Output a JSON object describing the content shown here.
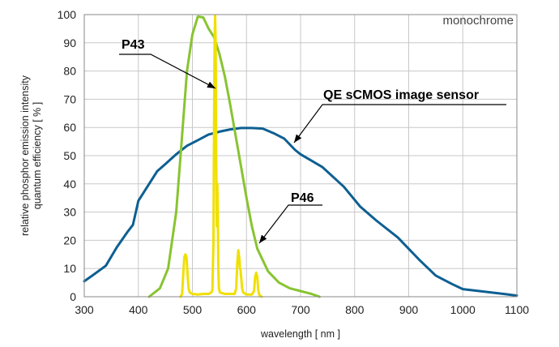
{
  "chart_data": {
    "type": "line",
    "annotations": {
      "corner": "monochrome",
      "qe": "QE sCMOS image sensor",
      "p43": "P43",
      "p46": "P46"
    },
    "xlabel": "wavelength [ nm ]",
    "ylabel_line1": "relative phosphor emission intensity",
    "ylabel_line2": "quantum efficiency [ % ]",
    "xlim": [
      300,
      1100
    ],
    "ylim": [
      0,
      100
    ],
    "xticks": [
      300,
      400,
      500,
      600,
      700,
      800,
      900,
      1000,
      1100
    ],
    "yticks": [
      0,
      10,
      20,
      30,
      40,
      50,
      60,
      70,
      80,
      90,
      100
    ],
    "grid": true,
    "series": [
      {
        "name": "QE sCMOS image sensor",
        "color": "#0d5f92",
        "points": [
          [
            300,
            5.5
          ],
          [
            315,
            7.5
          ],
          [
            340,
            11
          ],
          [
            360,
            17.5
          ],
          [
            380,
            23
          ],
          [
            390,
            25.5
          ],
          [
            400,
            34
          ],
          [
            420,
            40
          ],
          [
            435,
            44.5
          ],
          [
            450,
            47
          ],
          [
            470,
            50.5
          ],
          [
            490,
            53.5
          ],
          [
            510,
            55.5
          ],
          [
            530,
            57.5
          ],
          [
            550,
            58.5
          ],
          [
            570,
            59.3
          ],
          [
            590,
            59.8
          ],
          [
            610,
            59.8
          ],
          [
            630,
            59.6
          ],
          [
            650,
            58
          ],
          [
            670,
            56
          ],
          [
            690,
            52
          ],
          [
            700,
            50.5
          ],
          [
            740,
            46
          ],
          [
            780,
            39
          ],
          [
            810,
            32
          ],
          [
            840,
            27
          ],
          [
            880,
            21
          ],
          [
            920,
            13
          ],
          [
            950,
            7.5
          ],
          [
            980,
            4.5
          ],
          [
            1000,
            2.7
          ],
          [
            1040,
            1.8
          ],
          [
            1080,
            0.9
          ],
          [
            1100,
            0.4
          ]
        ]
      },
      {
        "name": "P46",
        "color": "#88c431",
        "points": [
          [
            420,
            0
          ],
          [
            440,
            3
          ],
          [
            455,
            10
          ],
          [
            470,
            30
          ],
          [
            480,
            55
          ],
          [
            490,
            80
          ],
          [
            500,
            93
          ],
          [
            510,
            99.3
          ],
          [
            520,
            99
          ],
          [
            530,
            95
          ],
          [
            540,
            92
          ],
          [
            550,
            86
          ],
          [
            560,
            78
          ],
          [
            570,
            68
          ],
          [
            580,
            57
          ],
          [
            590,
            46
          ],
          [
            600,
            35
          ],
          [
            610,
            25
          ],
          [
            620,
            17
          ],
          [
            640,
            9
          ],
          [
            660,
            5
          ],
          [
            680,
            3
          ],
          [
            700,
            2
          ],
          [
            720,
            1
          ],
          [
            735,
            0
          ]
        ]
      },
      {
        "name": "P43",
        "color": "#f0e000",
        "points": [
          [
            478,
            0
          ],
          [
            481,
            1
          ],
          [
            483,
            8
          ],
          [
            485,
            14
          ],
          [
            487,
            15
          ],
          [
            489,
            14
          ],
          [
            491,
            8
          ],
          [
            493,
            3
          ],
          [
            495,
            1.5
          ],
          [
            500,
            1
          ],
          [
            510,
            0.8
          ],
          [
            520,
            1
          ],
          [
            530,
            1
          ],
          [
            535,
            1.5
          ],
          [
            537,
            2.5
          ],
          [
            539,
            20
          ],
          [
            540,
            60
          ],
          [
            541,
            90
          ],
          [
            542,
            99.5
          ],
          [
            543,
            90
          ],
          [
            544,
            50
          ],
          [
            545,
            25
          ],
          [
            546,
            40
          ],
          [
            547,
            30
          ],
          [
            548,
            10
          ],
          [
            549,
            3
          ],
          [
            551,
            1.5
          ],
          [
            560,
            1
          ],
          [
            570,
            1
          ],
          [
            578,
            1
          ],
          [
            581,
            3
          ],
          [
            583,
            12
          ],
          [
            585,
            16.5
          ],
          [
            587,
            13
          ],
          [
            588,
            10
          ],
          [
            589,
            9.5
          ],
          [
            590,
            7
          ],
          [
            592,
            3
          ],
          [
            594,
            1.5
          ],
          [
            600,
            0.8
          ],
          [
            610,
            0.8
          ],
          [
            614,
            2
          ],
          [
            616,
            7
          ],
          [
            618,
            8.5
          ],
          [
            620,
            7
          ],
          [
            622,
            2
          ],
          [
            624,
            0.5
          ],
          [
            628,
            0
          ]
        ]
      }
    ]
  }
}
